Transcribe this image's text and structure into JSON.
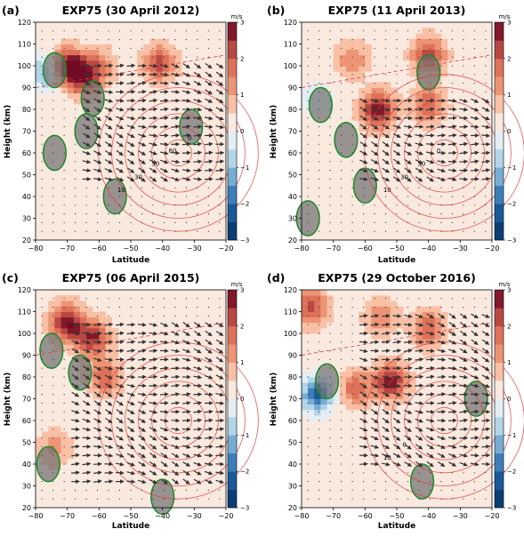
{
  "chart_data": [
    {
      "type": "heatmap",
      "panel_label": "(a)",
      "title": "EXP75 (30 April 2012)",
      "xlabel": "Latitude",
      "ylabel": "Height (km)",
      "xlim": [
        -80,
        -20
      ],
      "ylim": [
        20,
        120
      ],
      "x_ticks": [
        -80,
        -70,
        -60,
        -50,
        -40,
        -30,
        -20
      ],
      "y_ticks": [
        20,
        30,
        40,
        50,
        60,
        70,
        80,
        90,
        100,
        110,
        120
      ],
      "colorbar": {
        "unit": "m/s",
        "ticks": [
          -3,
          -2,
          -1,
          0,
          1,
          2,
          3
        ],
        "cmap": "RdBu_r"
      },
      "contour_labels": [
        "10",
        "30",
        "50",
        "60",
        "0"
      ],
      "features": {
        "blobs": [
          {
            "x": -70,
            "y": 100,
            "value": 2.8
          },
          {
            "x": -65,
            "y": 95,
            "value": 2.2
          },
          {
            "x": -77,
            "y": 97,
            "value": -1.5
          },
          {
            "x": -41,
            "y": 101,
            "value": 2.0
          },
          {
            "x": -60,
            "y": 100,
            "value": 1.2
          }
        ],
        "gray": [
          {
            "x": -74,
            "y": 98
          },
          {
            "x": -62,
            "y": 85
          },
          {
            "x": -64,
            "y": 70
          },
          {
            "x": -31,
            "y": 72
          },
          {
            "x": -74,
            "y": 60
          },
          {
            "x": -55,
            "y": 40
          }
        ],
        "arrow_region": {
          "x": [
            -66,
            -22
          ],
          "y": [
            45,
            100
          ]
        }
      }
    },
    {
      "type": "heatmap",
      "panel_label": "(b)",
      "title": "EXP75 (11 April 2013)",
      "xlabel": "Latitude",
      "ylabel": "Height (km)",
      "xlim": [
        -80,
        -20
      ],
      "ylim": [
        20,
        120
      ],
      "x_ticks": [
        -80,
        -70,
        -60,
        -50,
        -40,
        -30,
        -20
      ],
      "y_ticks": [
        20,
        30,
        40,
        50,
        60,
        70,
        80,
        90,
        100,
        110,
        120
      ],
      "colorbar": {
        "unit": "m/s",
        "ticks": [
          -3,
          -2,
          -1,
          0,
          1,
          2,
          3
        ],
        "cmap": "RdBu_r"
      },
      "contour_labels": [
        "10",
        "30",
        "50",
        "0"
      ],
      "features": {
        "blobs": [
          {
            "x": -56,
            "y": 80,
            "value": 2.6
          },
          {
            "x": -40,
            "y": 105,
            "value": 2.2
          },
          {
            "x": -40,
            "y": 82,
            "value": 1.8
          },
          {
            "x": -64,
            "y": 103,
            "value": 1.2
          },
          {
            "x": -75,
            "y": 85,
            "value": -0.6
          }
        ],
        "gray": [
          {
            "x": -74,
            "y": 82
          },
          {
            "x": -66,
            "y": 66
          },
          {
            "x": -40,
            "y": 97
          },
          {
            "x": -60,
            "y": 45
          },
          {
            "x": -78,
            "y": 30
          }
        ],
        "arrow_region": {
          "x": [
            -62,
            -22
          ],
          "y": [
            45,
            85
          ]
        }
      }
    },
    {
      "type": "heatmap",
      "panel_label": "(c)",
      "title": "EXP75 (06 April 2015)",
      "xlabel": "Latitude",
      "ylabel": "Height (km)",
      "xlim": [
        -80,
        -20
      ],
      "ylim": [
        20,
        120
      ],
      "x_ticks": [
        -80,
        -70,
        -60,
        -50,
        -40,
        -30,
        -20
      ],
      "y_ticks": [
        20,
        30,
        40,
        50,
        60,
        70,
        80,
        90,
        100,
        110,
        120
      ],
      "colorbar": {
        "unit": "m/s",
        "ticks": [
          -3,
          -2,
          -1,
          0,
          1,
          2,
          3
        ],
        "cmap": "RdBu_r"
      },
      "contour_labels": [],
      "features": {
        "blobs": [
          {
            "x": -70,
            "y": 105,
            "value": 2.8
          },
          {
            "x": -62,
            "y": 98,
            "value": 2.3
          },
          {
            "x": -58,
            "y": 80,
            "value": 1.8
          },
          {
            "x": -74,
            "y": 48,
            "value": 1.0
          }
        ],
        "gray": [
          {
            "x": -75,
            "y": 92
          },
          {
            "x": -66,
            "y": 82
          },
          {
            "x": -76,
            "y": 40
          },
          {
            "x": -40,
            "y": 25
          }
        ],
        "arrow_region": {
          "x": [
            -70,
            -22
          ],
          "y": [
            30,
            105
          ]
        }
      }
    },
    {
      "type": "heatmap",
      "panel_label": "(d)",
      "title": "EXP75 (29 October 2016)",
      "xlabel": "Latitude",
      "ylabel": "Height (km)",
      "xlim": [
        -80,
        -20
      ],
      "ylim": [
        20,
        120
      ],
      "x_ticks": [
        -80,
        -70,
        -60,
        -50,
        -40,
        -30,
        -20
      ],
      "y_ticks": [
        20,
        30,
        40,
        50,
        60,
        70,
        80,
        90,
        100,
        110,
        120
      ],
      "colorbar": {
        "unit": "m/s",
        "ticks": [
          -3,
          -2,
          -1,
          0,
          1,
          2,
          3
        ],
        "cmap": "RdBu_r"
      },
      "contour_labels": [
        "10",
        "0"
      ],
      "features": {
        "blobs": [
          {
            "x": -75,
            "y": 72,
            "value": -2.4
          },
          {
            "x": -52,
            "y": 78,
            "value": 2.6
          },
          {
            "x": -63,
            "y": 75,
            "value": 1.6
          },
          {
            "x": -40,
            "y": 102,
            "value": 1.8
          },
          {
            "x": -77,
            "y": 112,
            "value": 2.0
          },
          {
            "x": -55,
            "y": 108,
            "value": 1.2
          }
        ],
        "gray": [
          {
            "x": -72,
            "y": 78
          },
          {
            "x": -25,
            "y": 70
          },
          {
            "x": -42,
            "y": 32
          }
        ],
        "arrow_region": {
          "x": [
            -62,
            -22
          ],
          "y": [
            40,
            110
          ]
        }
      }
    }
  ]
}
